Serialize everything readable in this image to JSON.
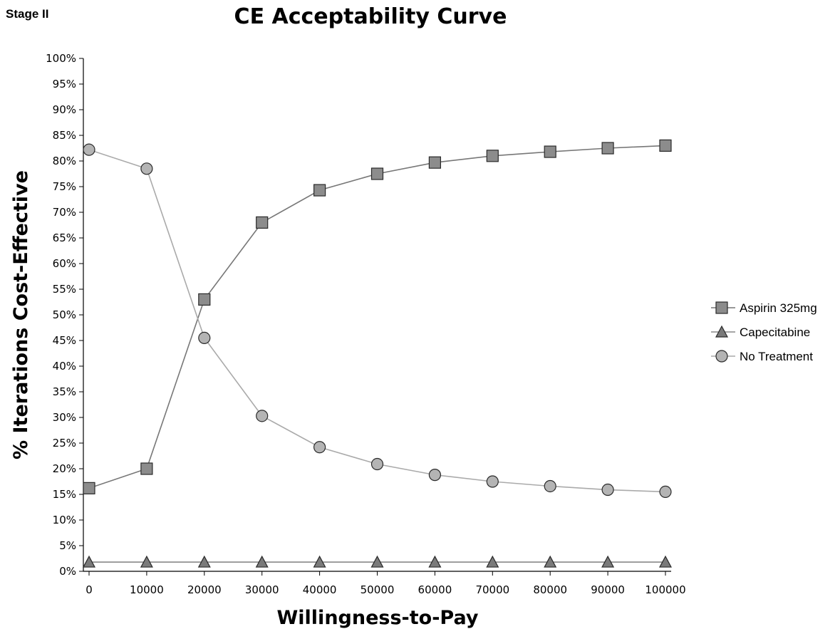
{
  "header": {
    "stage_label": "Stage II"
  },
  "chart_data": {
    "type": "line",
    "title": "CE Acceptability Curve",
    "xlabel": "Willingness-to-Pay",
    "ylabel": "% Iterations Cost-Effective",
    "x": [
      0,
      10000,
      20000,
      30000,
      40000,
      50000,
      60000,
      70000,
      80000,
      90000,
      100000
    ],
    "x_tick_labels": [
      "0",
      "10000",
      "20000",
      "30000",
      "40000",
      "50000",
      "60000",
      "70000",
      "80000",
      "90000",
      "100000"
    ],
    "ylim": [
      0,
      100
    ],
    "y_tick_labels": [
      "0%",
      "5%",
      "10%",
      "15%",
      "20%",
      "25%",
      "30%",
      "35%",
      "40%",
      "45%",
      "50%",
      "55%",
      "60%",
      "65%",
      "70%",
      "75%",
      "80%",
      "85%",
      "90%",
      "95%",
      "100%"
    ],
    "grid": false,
    "legend_position": "right",
    "series": [
      {
        "name": "Aspirin 325mg",
        "marker": "square",
        "line_color": "#777777",
        "marker_fill": "#8c8c8c",
        "values": [
          16.2,
          20.0,
          53.0,
          68.0,
          74.3,
          77.5,
          79.7,
          81.0,
          81.8,
          82.5,
          83.0
        ]
      },
      {
        "name": "Capecitabine",
        "marker": "triangle",
        "line_color": "#888888",
        "marker_fill": "#7a7a7a",
        "values": [
          1.8,
          1.8,
          1.8,
          1.8,
          1.8,
          1.8,
          1.8,
          1.8,
          1.8,
          1.8,
          1.8
        ]
      },
      {
        "name": "No Treatment",
        "marker": "circle",
        "line_color": "#aaaaaa",
        "marker_fill": "#b4b4b4",
        "values": [
          82.2,
          78.5,
          45.5,
          30.3,
          24.2,
          20.9,
          18.8,
          17.5,
          16.6,
          15.9,
          15.5
        ]
      }
    ]
  }
}
